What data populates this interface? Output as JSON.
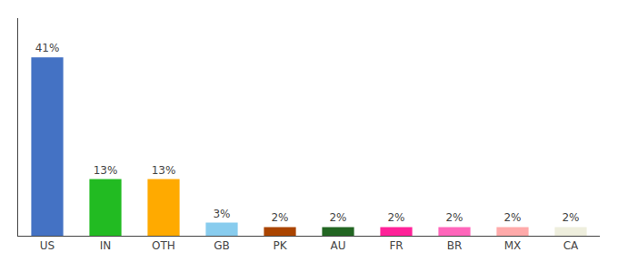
{
  "chart_data": {
    "type": "bar",
    "categories": [
      "US",
      "IN",
      "OTH",
      "GB",
      "PK",
      "AU",
      "FR",
      "BR",
      "MX",
      "CA"
    ],
    "values": [
      41,
      13,
      13,
      3,
      2,
      2,
      2,
      2,
      2,
      2
    ],
    "value_labels": [
      "41%",
      "13%",
      "13%",
      "3%",
      "2%",
      "2%",
      "2%",
      "2%",
      "2%",
      "2%"
    ],
    "data_labels": true,
    "colors": [
      "#4472c4",
      "#22bb22",
      "#ffaa00",
      "#88ccee",
      "#aa4400",
      "#226622",
      "#ff2299",
      "#ff66bb",
      "#ffaaaa",
      "#eeeedd"
    ],
    "ylim": [
      0,
      50
    ],
    "grid": false,
    "tick_labels": "x"
  }
}
